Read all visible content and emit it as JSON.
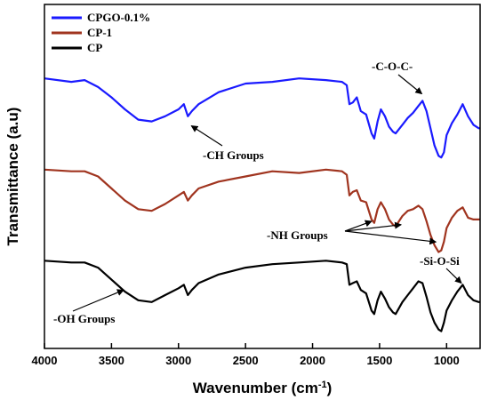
{
  "chart_data": {
    "type": "line",
    "xlabel": "Wavenumber (cm",
    "xlabel_sup": "-1",
    "xlabel_close": ")",
    "ylabel": "Transmittance (a.u)",
    "xlim": [
      4000,
      750
    ],
    "x_reversed": true,
    "ylim": [
      0,
      100
    ],
    "y_ticks_labeled": false,
    "grid": false,
    "legend_placement": "top-left",
    "x_ticks": [
      4000,
      3500,
      3000,
      2500,
      2000,
      1500,
      1000
    ],
    "x_tick_labels": [
      "4000",
      "3500",
      "3000",
      "2500",
      "2000",
      "1500",
      "1000"
    ],
    "series": [
      {
        "name": "CPGO-0.1%",
        "color": "#1a1aff",
        "points": [
          [
            4000,
            78.5
          ],
          [
            3800,
            77.5
          ],
          [
            3700,
            78
          ],
          [
            3600,
            76
          ],
          [
            3500,
            73
          ],
          [
            3400,
            69.5
          ],
          [
            3300,
            66.5
          ],
          [
            3200,
            66
          ],
          [
            3100,
            67.5
          ],
          [
            3000,
            69.5
          ],
          [
            2960,
            71
          ],
          [
            2930,
            67.5
          ],
          [
            2900,
            69
          ],
          [
            2850,
            71
          ],
          [
            2700,
            74.5
          ],
          [
            2500,
            77
          ],
          [
            2300,
            77.5
          ],
          [
            2100,
            78.5
          ],
          [
            1900,
            78
          ],
          [
            1780,
            77.5
          ],
          [
            1745,
            76.5
          ],
          [
            1725,
            71
          ],
          [
            1700,
            71.5
          ],
          [
            1670,
            73
          ],
          [
            1640,
            69
          ],
          [
            1600,
            68
          ],
          [
            1560,
            62.5
          ],
          [
            1540,
            61
          ],
          [
            1515,
            66
          ],
          [
            1490,
            69.5
          ],
          [
            1460,
            67.5
          ],
          [
            1430,
            64.5
          ],
          [
            1400,
            63
          ],
          [
            1380,
            62.5
          ],
          [
            1330,
            65
          ],
          [
            1290,
            67
          ],
          [
            1250,
            68.5
          ],
          [
            1210,
            70.5
          ],
          [
            1180,
            72
          ],
          [
            1150,
            69
          ],
          [
            1120,
            64
          ],
          [
            1090,
            59
          ],
          [
            1060,
            56
          ],
          [
            1040,
            55.5
          ],
          [
            1020,
            57
          ],
          [
            1000,
            62
          ],
          [
            960,
            65.5
          ],
          [
            920,
            68
          ],
          [
            880,
            71
          ],
          [
            840,
            67.5
          ],
          [
            800,
            65
          ],
          [
            760,
            64
          ],
          [
            750,
            64
          ]
        ]
      },
      {
        "name": "CP-1",
        "color": "#a0341f",
        "points": [
          [
            4000,
            52
          ],
          [
            3800,
            51.5
          ],
          [
            3700,
            51.5
          ],
          [
            3600,
            50
          ],
          [
            3500,
            46.5
          ],
          [
            3400,
            43
          ],
          [
            3300,
            40.5
          ],
          [
            3200,
            40
          ],
          [
            3100,
            42
          ],
          [
            3000,
            44.5
          ],
          [
            2960,
            45.5
          ],
          [
            2930,
            43
          ],
          [
            2900,
            44.5
          ],
          [
            2850,
            46.5
          ],
          [
            2700,
            48.5
          ],
          [
            2500,
            50
          ],
          [
            2300,
            51.5
          ],
          [
            2100,
            51
          ],
          [
            1900,
            52
          ],
          [
            1780,
            51.5
          ],
          [
            1745,
            50.5
          ],
          [
            1725,
            44.5
          ],
          [
            1700,
            45.5
          ],
          [
            1670,
            46
          ],
          [
            1640,
            43
          ],
          [
            1600,
            42.5
          ],
          [
            1560,
            37.5
          ],
          [
            1540,
            36.5
          ],
          [
            1515,
            40.5
          ],
          [
            1490,
            42.5
          ],
          [
            1460,
            40.5
          ],
          [
            1430,
            37.5
          ],
          [
            1400,
            36
          ],
          [
            1380,
            35.5
          ],
          [
            1330,
            38.5
          ],
          [
            1290,
            40
          ],
          [
            1250,
            40.5
          ],
          [
            1210,
            41.5
          ],
          [
            1180,
            40.5
          ],
          [
            1150,
            37
          ],
          [
            1120,
            33
          ],
          [
            1090,
            30
          ],
          [
            1060,
            28
          ],
          [
            1040,
            28.5
          ],
          [
            1020,
            31
          ],
          [
            1000,
            35
          ],
          [
            960,
            38
          ],
          [
            920,
            40
          ],
          [
            880,
            41
          ],
          [
            840,
            38
          ],
          [
            800,
            37.5
          ],
          [
            760,
            37.5
          ],
          [
            750,
            37.5
          ]
        ]
      },
      {
        "name": "CP",
        "color": "#000000",
        "points": [
          [
            4000,
            25.5
          ],
          [
            3800,
            25
          ],
          [
            3700,
            25
          ],
          [
            3600,
            23.5
          ],
          [
            3500,
            20
          ],
          [
            3400,
            16.5
          ],
          [
            3300,
            14
          ],
          [
            3200,
            13.5
          ],
          [
            3100,
            15.5
          ],
          [
            3000,
            17.5
          ],
          [
            2960,
            18.5
          ],
          [
            2930,
            15.5
          ],
          [
            2900,
            17
          ],
          [
            2850,
            19
          ],
          [
            2700,
            21.5
          ],
          [
            2500,
            23.5
          ],
          [
            2300,
            24.5
          ],
          [
            2100,
            25
          ],
          [
            1900,
            25.5
          ],
          [
            1780,
            25
          ],
          [
            1745,
            24.5
          ],
          [
            1725,
            18.5
          ],
          [
            1700,
            19
          ],
          [
            1670,
            19.5
          ],
          [
            1640,
            17
          ],
          [
            1600,
            16
          ],
          [
            1560,
            11
          ],
          [
            1540,
            10
          ],
          [
            1515,
            14
          ],
          [
            1490,
            16.5
          ],
          [
            1460,
            14.5
          ],
          [
            1430,
            12
          ],
          [
            1400,
            10.5
          ],
          [
            1380,
            10
          ],
          [
            1330,
            13.5
          ],
          [
            1290,
            15.5
          ],
          [
            1250,
            17.5
          ],
          [
            1210,
            19.5
          ],
          [
            1180,
            19
          ],
          [
            1150,
            15
          ],
          [
            1120,
            10.5
          ],
          [
            1090,
            7.5
          ],
          [
            1060,
            5.5
          ],
          [
            1040,
            5
          ],
          [
            1020,
            7.5
          ],
          [
            1000,
            11
          ],
          [
            960,
            14
          ],
          [
            920,
            16.5
          ],
          [
            880,
            18.5
          ],
          [
            840,
            15.5
          ],
          [
            800,
            14
          ],
          [
            760,
            13.5
          ],
          [
            750,
            13.5
          ]
        ]
      }
    ],
    "annotations": [
      {
        "text": "-C-O-C-",
        "target": [
          1185,
          73
        ]
      },
      {
        "text": "-CH Groups",
        "target": [
          2930,
          66
        ]
      },
      {
        "text": "-NH Groups",
        "targets": [
          [
            1560,
            38
          ],
          [
            1340,
            37
          ],
          [
            1080,
            32
          ]
        ]
      },
      {
        "text": "-Si-O-Si",
        "target": [
          890,
          19
        ]
      },
      {
        "text": "-OH Groups",
        "target": [
          3450,
          18
        ]
      }
    ]
  }
}
